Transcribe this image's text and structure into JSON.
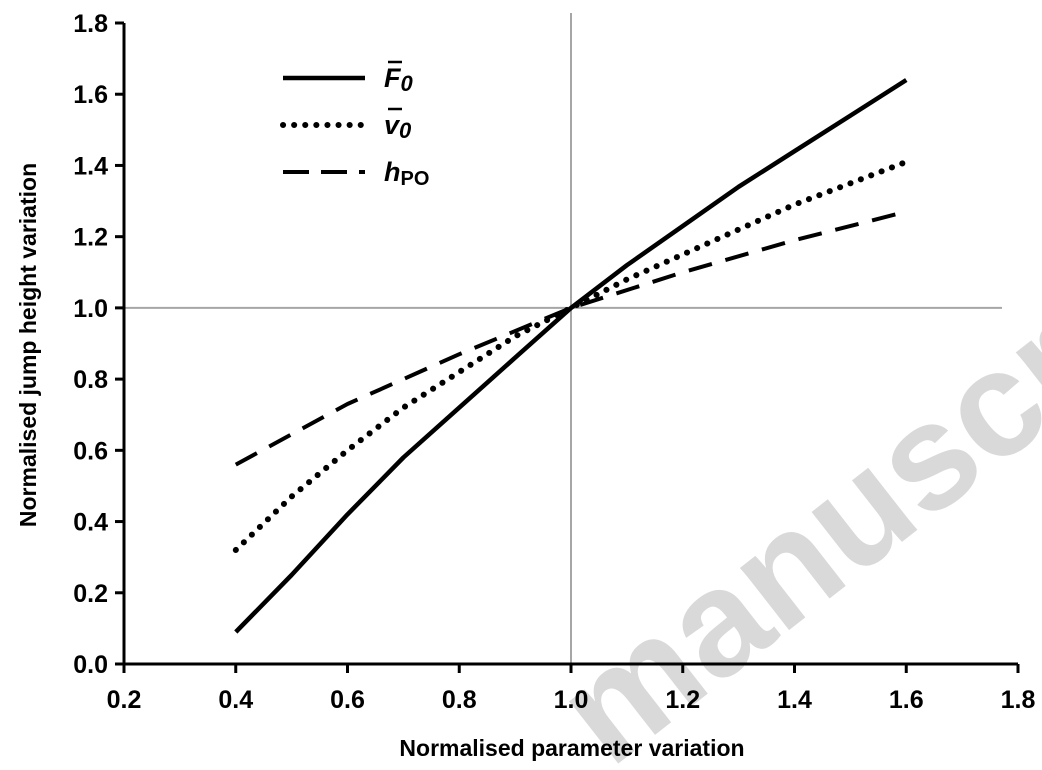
{
  "chart_data": {
    "type": "line",
    "xlabel": "Normalised parameter variation",
    "ylabel": "Normalised jump height variation",
    "xlim": [
      0.2,
      1.8
    ],
    "ylim": [
      0.0,
      1.8
    ],
    "x_ticks": [
      "0.2",
      "0.4",
      "0.6",
      "0.8",
      "1.0",
      "1.2",
      "1.4",
      "1.6",
      "1.8"
    ],
    "y_ticks": [
      "0.0",
      "0.2",
      "0.4",
      "0.6",
      "0.8",
      "1.0",
      "1.2",
      "1.4",
      "1.6",
      "1.8"
    ],
    "reference_lines": {
      "x": 1.0,
      "y": 1.0
    },
    "legend_position": "top-left",
    "grid": false,
    "series": [
      {
        "name": "F0",
        "legend_main": "F",
        "legend_sub": "0",
        "style": "solid",
        "x": [
          0.4,
          0.5,
          0.6,
          0.7,
          0.8,
          0.9,
          1.0,
          1.1,
          1.2,
          1.3,
          1.4,
          1.5,
          1.6
        ],
        "y": [
          0.09,
          0.25,
          0.42,
          0.58,
          0.72,
          0.86,
          1.0,
          1.12,
          1.23,
          1.34,
          1.44,
          1.54,
          1.64
        ]
      },
      {
        "name": "v0",
        "legend_main": "v",
        "legend_sub": "0",
        "style": "dotted",
        "x": [
          0.4,
          0.5,
          0.6,
          0.7,
          0.8,
          0.9,
          1.0,
          1.1,
          1.2,
          1.3,
          1.4,
          1.5,
          1.6
        ],
        "y": [
          0.32,
          0.47,
          0.6,
          0.72,
          0.82,
          0.92,
          1.0,
          1.08,
          1.15,
          1.22,
          1.29,
          1.35,
          1.41
        ]
      },
      {
        "name": "hPO",
        "legend_main": "h",
        "legend_sub": "PO",
        "style": "dashed",
        "x": [
          0.4,
          0.6,
          0.8,
          1.0,
          1.2,
          1.4,
          1.6
        ],
        "y": [
          0.56,
          0.73,
          0.87,
          1.0,
          1.1,
          1.19,
          1.27
        ]
      }
    ]
  },
  "watermark": "manuscript"
}
